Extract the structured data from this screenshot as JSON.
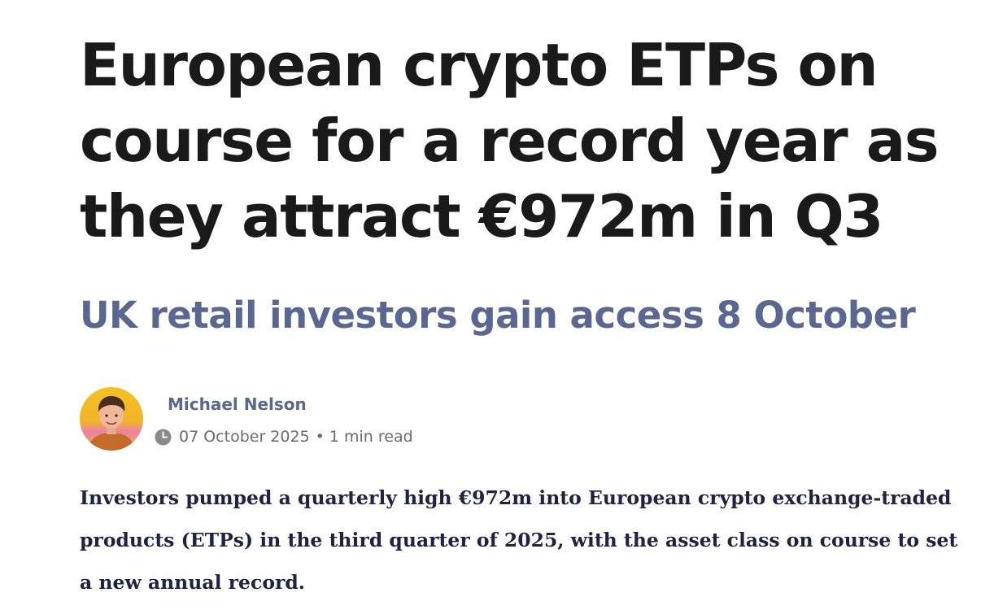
{
  "article": {
    "headline": "European crypto ETPs on course for a record year as they attract €972m in Q3",
    "subheadline": "UK retail investors gain access 8 October",
    "byline": {
      "author": "Michael Nelson",
      "date": "07 October 2025",
      "separator": "•",
      "read_time": "1 min read",
      "icons": {
        "avatar": "author-avatar",
        "clock": "clock-icon"
      }
    },
    "lede": "Investors pumped a quarterly high €972m into European crypto exchange-traded products (ETPs) in the third quarter of 2025, with the asset class on course to set a new annual record."
  },
  "colors": {
    "headline": "#1a1a1a",
    "subheadline": "#5a6790",
    "author": "#5a6790",
    "meta": "#6b6b6b",
    "lede": "#1d2340"
  }
}
